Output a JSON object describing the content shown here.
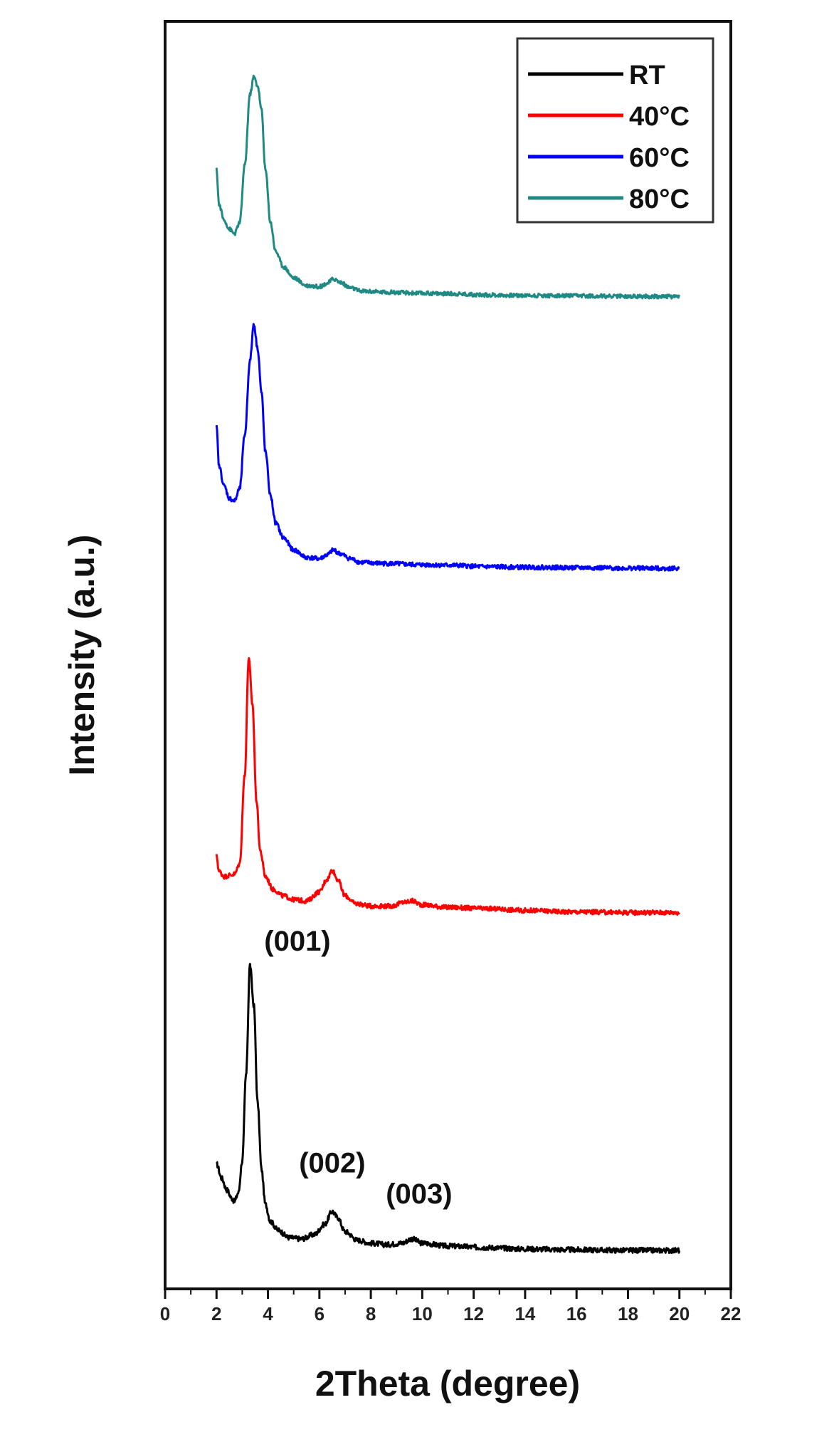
{
  "chart_data": {
    "type": "line",
    "xlabel": "2Theta (degree)",
    "ylabel": "Intensity (a.u.)",
    "xlim": [
      0,
      22
    ],
    "xticks": [
      0,
      2,
      4,
      6,
      8,
      10,
      12,
      14,
      16,
      18,
      20,
      22
    ],
    "y_ticks_shown": false,
    "grid": false,
    "legend": {
      "position": "top-right"
    },
    "series": [
      {
        "name": "RT",
        "color": "#000000",
        "offset": 0,
        "points": [
          [
            2.0,
            0.31
          ],
          [
            2.2,
            0.26
          ],
          [
            2.4,
            0.22
          ],
          [
            2.6,
            0.19
          ],
          [
            2.7,
            0.18
          ],
          [
            2.85,
            0.21
          ],
          [
            3.0,
            0.32
          ],
          [
            3.15,
            0.62
          ],
          [
            3.3,
            1.0
          ],
          [
            3.45,
            0.86
          ],
          [
            3.6,
            0.52
          ],
          [
            3.75,
            0.29
          ],
          [
            3.9,
            0.17
          ],
          [
            4.1,
            0.11
          ],
          [
            4.4,
            0.08
          ],
          [
            4.8,
            0.055
          ],
          [
            5.3,
            0.05
          ],
          [
            5.8,
            0.065
          ],
          [
            6.2,
            0.1
          ],
          [
            6.5,
            0.145
          ],
          [
            6.7,
            0.125
          ],
          [
            7.0,
            0.075
          ],
          [
            7.5,
            0.045
          ],
          [
            8.0,
            0.035
          ],
          [
            8.6,
            0.03
          ],
          [
            9.2,
            0.035
          ],
          [
            9.6,
            0.05
          ],
          [
            10.0,
            0.035
          ],
          [
            11.0,
            0.025
          ],
          [
            12.5,
            0.02
          ],
          [
            14.0,
            0.015
          ],
          [
            16.0,
            0.012
          ],
          [
            18.0,
            0.01
          ],
          [
            20.0,
            0.01
          ]
        ]
      },
      {
        "name": "40°C",
        "color": "#ff0000",
        "offset": 1,
        "points": [
          [
            2.0,
            0.23
          ],
          [
            2.1,
            0.17
          ],
          [
            2.3,
            0.15
          ],
          [
            2.5,
            0.155
          ],
          [
            2.7,
            0.16
          ],
          [
            2.9,
            0.2
          ],
          [
            3.1,
            0.55
          ],
          [
            3.25,
            1.0
          ],
          [
            3.4,
            0.82
          ],
          [
            3.55,
            0.45
          ],
          [
            3.7,
            0.25
          ],
          [
            3.9,
            0.15
          ],
          [
            4.2,
            0.1
          ],
          [
            4.6,
            0.075
          ],
          [
            5.0,
            0.06
          ],
          [
            5.5,
            0.055
          ],
          [
            6.0,
            0.09
          ],
          [
            6.3,
            0.14
          ],
          [
            6.5,
            0.175
          ],
          [
            6.7,
            0.14
          ],
          [
            7.0,
            0.075
          ],
          [
            7.4,
            0.045
          ],
          [
            8.0,
            0.035
          ],
          [
            8.8,
            0.035
          ],
          [
            9.3,
            0.05
          ],
          [
            9.6,
            0.055
          ],
          [
            10.0,
            0.04
          ],
          [
            11.0,
            0.03
          ],
          [
            12.5,
            0.025
          ],
          [
            14.0,
            0.018
          ],
          [
            16.0,
            0.012
          ],
          [
            18.0,
            0.01
          ],
          [
            20.0,
            0.01
          ]
        ]
      },
      {
        "name": "60°C",
        "color": "#0000ff",
        "offset": 2,
        "points": [
          [
            2.0,
            0.58
          ],
          [
            2.1,
            0.42
          ],
          [
            2.3,
            0.34
          ],
          [
            2.5,
            0.29
          ],
          [
            2.7,
            0.28
          ],
          [
            2.9,
            0.33
          ],
          [
            3.1,
            0.55
          ],
          [
            3.3,
            0.85
          ],
          [
            3.45,
            1.0
          ],
          [
            3.6,
            0.9
          ],
          [
            3.75,
            0.72
          ],
          [
            3.9,
            0.48
          ],
          [
            4.1,
            0.3
          ],
          [
            4.3,
            0.19
          ],
          [
            4.6,
            0.13
          ],
          [
            5.0,
            0.08
          ],
          [
            5.5,
            0.05
          ],
          [
            6.0,
            0.045
          ],
          [
            6.3,
            0.06
          ],
          [
            6.55,
            0.08
          ],
          [
            6.8,
            0.065
          ],
          [
            7.2,
            0.045
          ],
          [
            7.6,
            0.03
          ],
          [
            8.5,
            0.025
          ],
          [
            10.0,
            0.02
          ],
          [
            11.0,
            0.018
          ],
          [
            12.5,
            0.012
          ],
          [
            14.0,
            0.01
          ],
          [
            16.0,
            0.008
          ],
          [
            18.0,
            0.006
          ],
          [
            20.0,
            0.005
          ]
        ]
      },
      {
        "name": "80°C",
        "color": "#1f8a84",
        "offset": 3,
        "points": [
          [
            2.0,
            0.58
          ],
          [
            2.1,
            0.42
          ],
          [
            2.3,
            0.35
          ],
          [
            2.5,
            0.31
          ],
          [
            2.7,
            0.29
          ],
          [
            2.9,
            0.34
          ],
          [
            3.1,
            0.6
          ],
          [
            3.3,
            0.92
          ],
          [
            3.45,
            1.0
          ],
          [
            3.6,
            0.96
          ],
          [
            3.75,
            0.85
          ],
          [
            3.9,
            0.58
          ],
          [
            4.1,
            0.34
          ],
          [
            4.3,
            0.21
          ],
          [
            4.6,
            0.14
          ],
          [
            5.0,
            0.09
          ],
          [
            5.5,
            0.055
          ],
          [
            6.0,
            0.05
          ],
          [
            6.3,
            0.065
          ],
          [
            6.55,
            0.085
          ],
          [
            6.8,
            0.07
          ],
          [
            7.2,
            0.045
          ],
          [
            7.6,
            0.03
          ],
          [
            8.5,
            0.025
          ],
          [
            10.0,
            0.02
          ],
          [
            11.0,
            0.018
          ],
          [
            12.5,
            0.012
          ],
          [
            14.0,
            0.01
          ],
          [
            16.0,
            0.008
          ],
          [
            18.0,
            0.006
          ],
          [
            20.0,
            0.005
          ]
        ]
      }
    ],
    "annotations": [
      {
        "text": "(001)",
        "x": 3.3,
        "series": "RT"
      },
      {
        "text": "(002)",
        "x": 6.5,
        "series": "RT"
      },
      {
        "text": "(003)",
        "x": 9.6,
        "series": "RT"
      }
    ]
  }
}
